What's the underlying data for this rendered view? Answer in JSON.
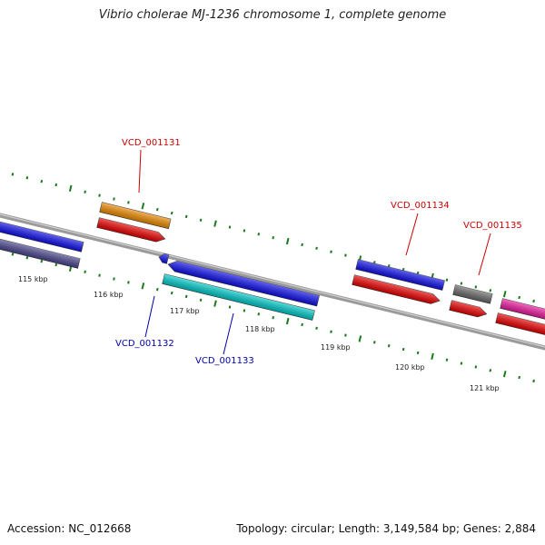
{
  "title": "Vibrio cholerae MJ-1236 chromosome 1, complete genome",
  "footer": {
    "accession": "Accession: NC_012668",
    "summary": "Topology: circular; Length: 3,149,584 bp; Genes: 2,884"
  },
  "scale_labels": [
    "115 kbp",
    "116 kbp",
    "117 kbp",
    "118 kbp",
    "119 kbp",
    "120 kbp",
    "121 kbp"
  ],
  "gene_labels": [
    {
      "id": "VCD_001131",
      "strand": "forward"
    },
    {
      "id": "VCD_001132",
      "strand": "reverse"
    },
    {
      "id": "VCD_001133",
      "strand": "reverse"
    },
    {
      "id": "VCD_001134",
      "strand": "forward"
    },
    {
      "id": "VCD_001135",
      "strand": "forward"
    }
  ],
  "colors": {
    "forward_label": "#cc0000",
    "reverse_label": "#0000aa",
    "tick": "#1a7a1a",
    "backbone": "#8a8a8a",
    "blue": "#1010ee",
    "red": "#ee0000",
    "orange": "#f08c00",
    "cyan": "#00cccc",
    "slate": "#4a4690",
    "gray": "#6a6a6a",
    "pink": "#ee1aa0"
  }
}
